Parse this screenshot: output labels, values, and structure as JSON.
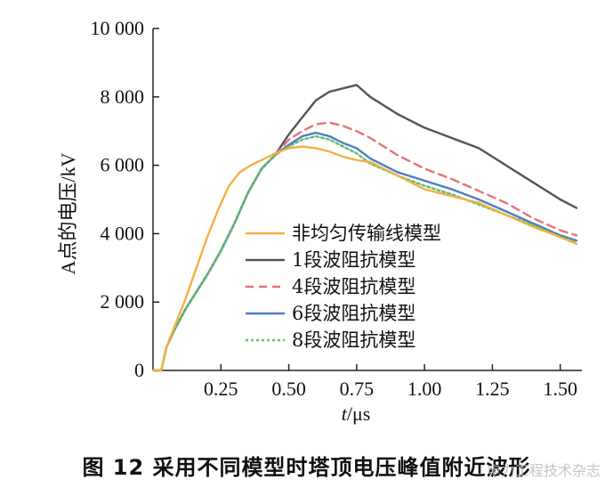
{
  "caption": "图 12   采用不同模型时塔顶电压峰值附近波形",
  "watermark": "电力工程技术杂志",
  "chart_data": {
    "type": "line",
    "title": "",
    "xlabel_italic": "t",
    "xlabel_unit": "/μs",
    "ylabel": "A点的电压/kV",
    "xlim": [
      0,
      1.56
    ],
    "ylim": [
      0,
      10000
    ],
    "xticks": [
      0.25,
      0.5,
      0.75,
      1.0,
      1.25,
      1.5
    ],
    "xtick_labels": [
      "0.25",
      "0.50",
      "0.75",
      "1.00",
      "1.25",
      "1.50"
    ],
    "yticks": [
      0,
      2000,
      4000,
      6000,
      8000,
      10000
    ],
    "ytick_labels": [
      "0",
      "2 000",
      "4 000",
      "6 000",
      "8 000",
      "10 000"
    ],
    "grid": false,
    "legend_position": "lower-center",
    "series": [
      {
        "name": "非均匀传输线模型",
        "color": "#f5b041",
        "dash": "solid",
        "x": [
          0,
          0.03,
          0.05,
          0.08,
          0.12,
          0.16,
          0.2,
          0.24,
          0.28,
          0.32,
          0.36,
          0.4,
          0.45,
          0.5,
          0.55,
          0.6,
          0.65,
          0.7,
          0.75,
          0.8,
          0.9,
          1.0,
          1.1,
          1.2,
          1.3,
          1.4,
          1.5,
          1.56
        ],
        "y": [
          0,
          0,
          700,
          1300,
          2100,
          3000,
          3900,
          4700,
          5400,
          5800,
          6000,
          6150,
          6350,
          6500,
          6550,
          6500,
          6400,
          6250,
          6150,
          6100,
          5700,
          5300,
          5100,
          4900,
          4550,
          4200,
          3900,
          3700
        ]
      },
      {
        "name": "1段波阻抗模型",
        "color": "#555555",
        "dash": "solid",
        "x": [
          0,
          0.03,
          0.05,
          0.08,
          0.12,
          0.16,
          0.2,
          0.25,
          0.3,
          0.35,
          0.4,
          0.45,
          0.5,
          0.55,
          0.6,
          0.65,
          0.7,
          0.75,
          0.8,
          0.9,
          1.0,
          1.1,
          1.2,
          1.3,
          1.4,
          1.5,
          1.56
        ],
        "y": [
          0,
          0,
          700,
          1200,
          1800,
          2300,
          2800,
          3500,
          4300,
          5200,
          5900,
          6300,
          6900,
          7400,
          7900,
          8150,
          8250,
          8350,
          8000,
          7500,
          7100,
          6800,
          6500,
          6000,
          5500,
          5000,
          4750
        ]
      },
      {
        "name": "4段波阻抗模型",
        "color": "#e57373",
        "dash": "dashed",
        "x": [
          0,
          0.03,
          0.05,
          0.08,
          0.12,
          0.16,
          0.2,
          0.25,
          0.3,
          0.35,
          0.4,
          0.45,
          0.5,
          0.55,
          0.6,
          0.65,
          0.7,
          0.75,
          0.8,
          0.9,
          1.0,
          1.1,
          1.2,
          1.3,
          1.4,
          1.5,
          1.56
        ],
        "y": [
          0,
          0,
          700,
          1200,
          1800,
          2300,
          2800,
          3500,
          4300,
          5200,
          5900,
          6300,
          6750,
          7000,
          7200,
          7250,
          7150,
          7000,
          6800,
          6300,
          5900,
          5600,
          5250,
          4900,
          4450,
          4100,
          3950
        ]
      },
      {
        "name": "6段波阻抗模型",
        "color": "#4a7fc1",
        "dash": "solid",
        "x": [
          0,
          0.03,
          0.05,
          0.08,
          0.12,
          0.16,
          0.2,
          0.25,
          0.3,
          0.35,
          0.4,
          0.45,
          0.5,
          0.55,
          0.6,
          0.65,
          0.7,
          0.75,
          0.8,
          0.9,
          1.0,
          1.1,
          1.2,
          1.3,
          1.4,
          1.5,
          1.56
        ],
        "y": [
          0,
          0,
          700,
          1200,
          1800,
          2300,
          2800,
          3500,
          4300,
          5200,
          5900,
          6300,
          6600,
          6850,
          6950,
          6850,
          6650,
          6500,
          6200,
          5800,
          5550,
          5300,
          5000,
          4650,
          4300,
          3950,
          3800
        ]
      },
      {
        "name": "8段波阻抗模型",
        "color": "#66bb6a",
        "dash": "dotted",
        "x": [
          0,
          0.03,
          0.05,
          0.08,
          0.12,
          0.16,
          0.2,
          0.25,
          0.3,
          0.35,
          0.4,
          0.45,
          0.5,
          0.55,
          0.6,
          0.65,
          0.7,
          0.75,
          0.8,
          0.9,
          1.0,
          1.1,
          1.2,
          1.3,
          1.4,
          1.5,
          1.56
        ],
        "y": [
          0,
          0,
          700,
          1200,
          1800,
          2300,
          2800,
          3500,
          4300,
          5200,
          5900,
          6300,
          6550,
          6750,
          6850,
          6750,
          6550,
          6350,
          6050,
          5700,
          5400,
          5150,
          4850,
          4550,
          4250,
          3900,
          3750
        ]
      }
    ]
  }
}
